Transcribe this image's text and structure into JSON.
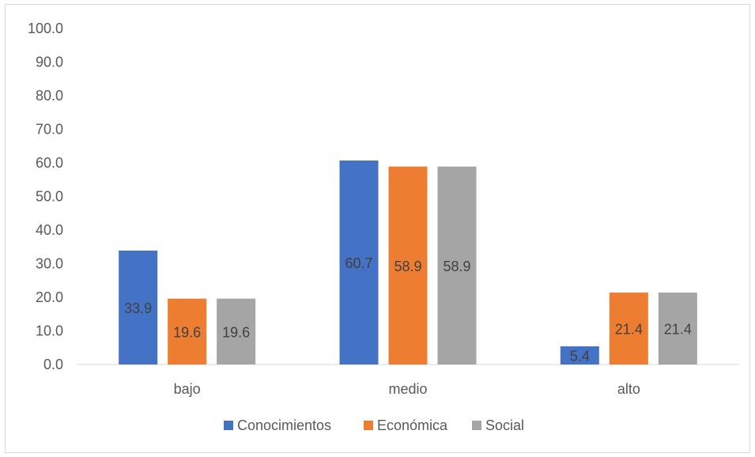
{
  "chart_data": {
    "type": "bar",
    "title": "",
    "xlabel": "",
    "ylabel": "",
    "ylim": [
      0,
      100
    ],
    "yticks": [
      "0.0",
      "10.0",
      "20.0",
      "30.0",
      "40.0",
      "50.0",
      "60.0",
      "70.0",
      "80.0",
      "90.0",
      "100.0"
    ],
    "grid": false,
    "legend": "bottom",
    "categories": [
      "bajo",
      "medio",
      "alto"
    ],
    "series": [
      {
        "name": "Conocimientos",
        "values": [
          33.9,
          60.7,
          5.4
        ],
        "color": "#4472c4"
      },
      {
        "name": "Económica",
        "values": [
          19.6,
          58.9,
          21.4
        ],
        "color": "#ed7d31"
      },
      {
        "name": "Social",
        "values": [
          19.6,
          58.9,
          21.4
        ],
        "color": "#a5a5a5"
      }
    ]
  }
}
